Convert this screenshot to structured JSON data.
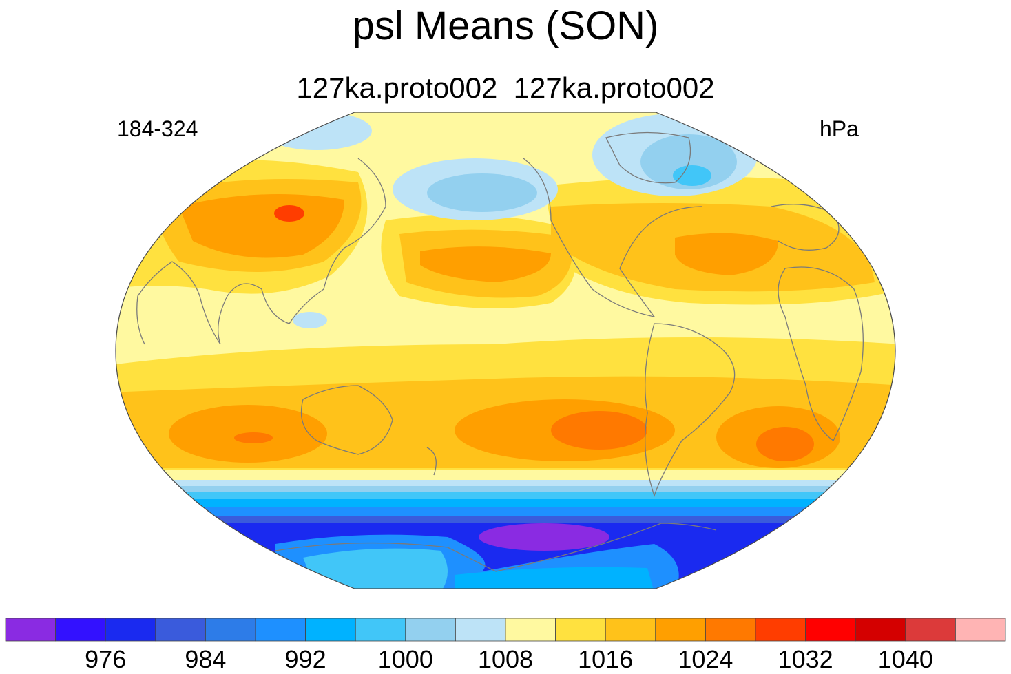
{
  "title": "psl Means (SON)",
  "subtitle": "127ka.proto002  127ka.proto002",
  "left_label": "184-324",
  "right_label": "hPa",
  "colorbar": {
    "colors": [
      "#8a2be2",
      "#3311ff",
      "#1a2af0",
      "#3a5bdc",
      "#2d7ce8",
      "#1e90ff",
      "#00b2ff",
      "#41c6f8",
      "#93d0ef",
      "#bde3f7",
      "#fff9a0",
      "#ffe13f",
      "#ffc21a",
      "#ff9f00",
      "#ff7900",
      "#ff3d00",
      "#ff0000",
      "#d40000",
      "#dc3a3a",
      "#ffb4b4"
    ],
    "labels": [
      "976",
      "984",
      "992",
      "1000",
      "1008",
      "1016",
      "1024",
      "1032",
      "1040"
    ]
  }
}
